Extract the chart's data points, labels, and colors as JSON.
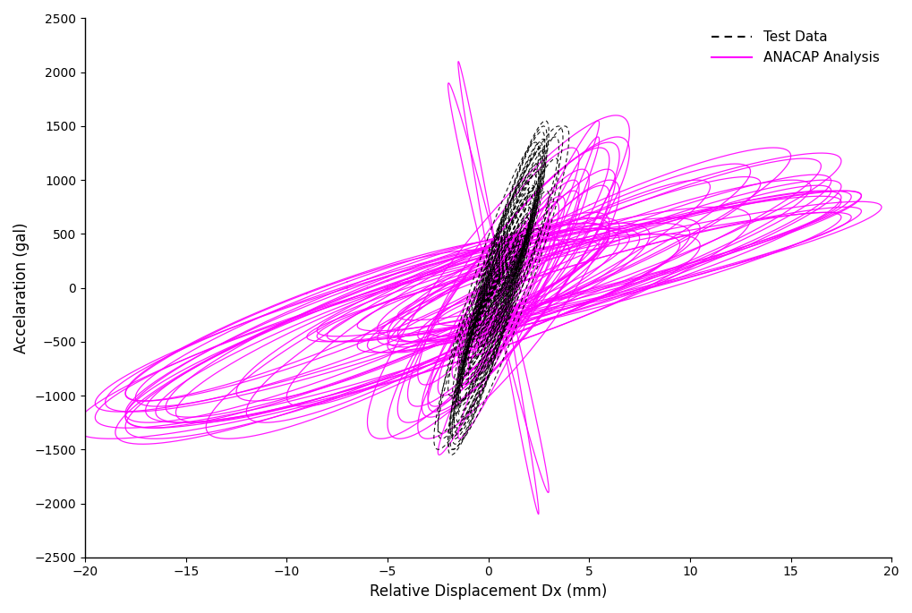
{
  "xlim": [
    -20,
    20
  ],
  "ylim": [
    -2500,
    2500
  ],
  "xlabel": "Relative Displacement Dx (mm)",
  "ylabel": "Accelaration (gal)",
  "legend_test": "Test Data",
  "legend_anacap": "ANACAP Analysis",
  "test_color": "#000000",
  "anacap_color": "#ff00ff",
  "background_color": "#ffffff",
  "yticks": [
    -2500,
    -2000,
    -1500,
    -1000,
    -500,
    0,
    500,
    1000,
    1500,
    2000,
    2500
  ],
  "xticks": [
    -20,
    -15,
    -10,
    -5,
    0,
    5,
    10,
    15,
    20
  ]
}
